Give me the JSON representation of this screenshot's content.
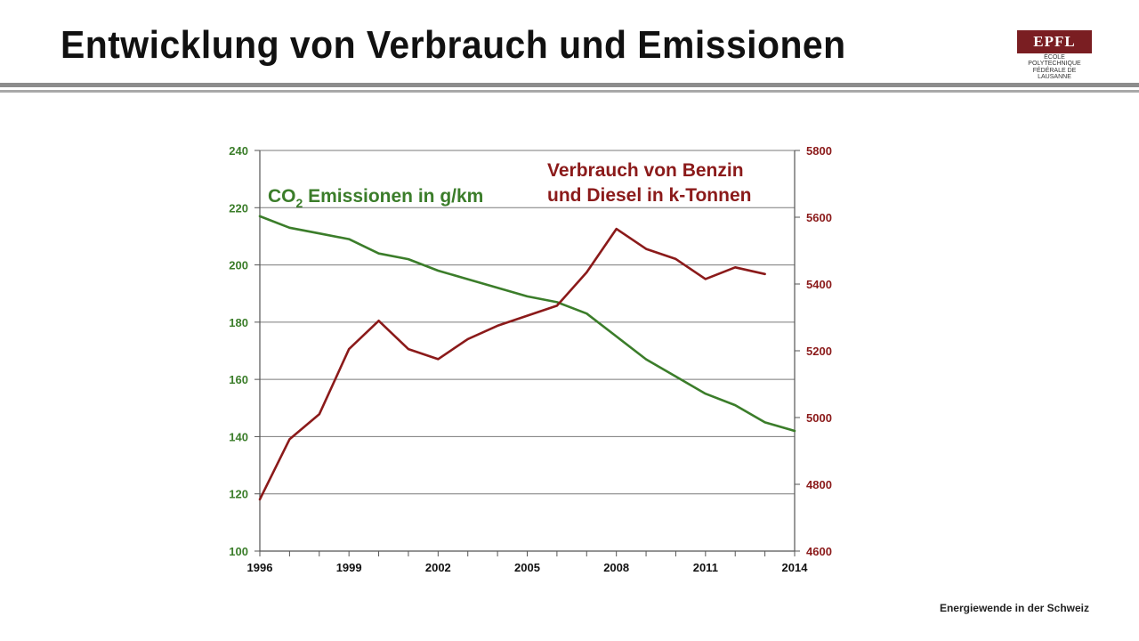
{
  "slide": {
    "title": "Entwicklung von Verbrauch und Emissionen",
    "footer": "Energiewende in der Schweiz"
  },
  "logo": {
    "mark": "EPFL",
    "line1": "ÉCOLE POLYTECHNIQUE",
    "line2": "FÉDÉRALE DE LAUSANNE"
  },
  "colors": {
    "co2": "#3b7d2a",
    "fuel": "#8b1a1a",
    "logo": "#7a1e22"
  },
  "chart_data": {
    "type": "line",
    "grid": true,
    "x_ticks": [
      "1996",
      "1999",
      "2002",
      "2005",
      "2008",
      "2011",
      "2014"
    ],
    "xlim": [
      1996,
      2014
    ],
    "y_left": {
      "lim": [
        100,
        240
      ],
      "ticks": [
        "100",
        "120",
        "140",
        "160",
        "180",
        "200",
        "220",
        "240"
      ]
    },
    "y_right": {
      "lim": [
        4600,
        5800
      ],
      "ticks": [
        "4600",
        "4800",
        "5000",
        "5200",
        "5400",
        "5600",
        "5800"
      ]
    },
    "series": [
      {
        "name_parts": {
          "pre": "CO",
          "sub": "2",
          "post": " Emissionen in g/km"
        },
        "axis": "left",
        "x": [
          1996,
          1997,
          1998,
          1999,
          2000,
          2001,
          2002,
          2003,
          2004,
          2005,
          2006,
          2007,
          2008,
          2009,
          2010,
          2011,
          2012,
          2013,
          2014
        ],
        "values": [
          217,
          213,
          211,
          209,
          204,
          202,
          198,
          195,
          192,
          189,
          187,
          183,
          175,
          167,
          161,
          155,
          151,
          145,
          142
        ]
      },
      {
        "name_lines": [
          "Verbrauch von Benzin",
          "und Diesel in k-Tonnen"
        ],
        "axis": "right",
        "x": [
          1996,
          1997,
          1998,
          1999,
          2000,
          2001,
          2002,
          2003,
          2004,
          2005,
          2006,
          2007,
          2008,
          2009,
          2010,
          2011,
          2012,
          2013
        ],
        "values": [
          4755,
          4935,
          5010,
          5205,
          5290,
          5205,
          5175,
          5235,
          5275,
          5305,
          5335,
          5435,
          5565,
          5505,
          5475,
          5415,
          5450,
          5430
        ]
      }
    ]
  }
}
